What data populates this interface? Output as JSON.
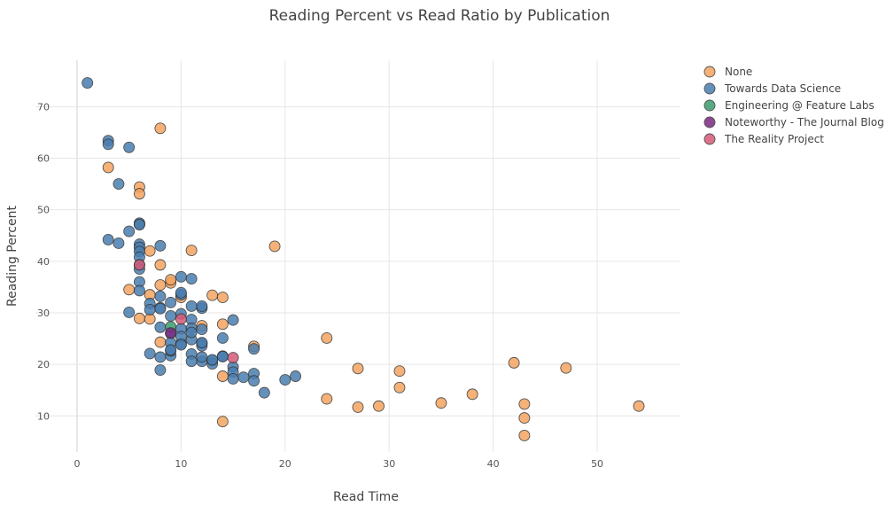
{
  "chart_data": {
    "type": "scatter",
    "title": "Reading Percent vs Read Ratio by Publication",
    "xlabel": "Read Time",
    "ylabel": "Reading Percent",
    "xlim": [
      -4,
      58
    ],
    "ylim": [
      3,
      79
    ],
    "x_ticks": [
      0,
      10,
      20,
      30,
      40,
      50
    ],
    "y_ticks": [
      10,
      20,
      30,
      40,
      50,
      60,
      70
    ],
    "grid": true,
    "legend_position": "top-right",
    "series": [
      {
        "name": "None",
        "color": "#f4a460",
        "x": [
          8,
          3,
          6,
          6,
          6,
          7,
          11,
          19,
          8,
          5,
          8,
          9,
          9,
          13,
          14,
          7,
          10,
          6,
          7,
          12,
          14,
          24,
          17,
          8,
          27,
          31,
          42,
          47,
          14,
          24,
          31,
          38,
          35,
          27,
          29,
          54,
          43,
          43,
          14,
          43
        ],
        "y": [
          65.8,
          58.2,
          54.4,
          53.1,
          47.2,
          42.0,
          42.1,
          42.9,
          39.3,
          34.5,
          35.4,
          35.8,
          36.4,
          33.4,
          33.0,
          33.5,
          33.0,
          28.9,
          28.8,
          27.5,
          27.8,
          25.1,
          23.5,
          24.3,
          19.2,
          18.7,
          20.3,
          19.3,
          17.7,
          13.3,
          15.5,
          14.2,
          12.5,
          11.7,
          11.9,
          11.9,
          12.3,
          9.6,
          8.9,
          6.2
        ]
      },
      {
        "name": "Towards Data Science",
        "color": "#4a7eb0",
        "x": [
          1,
          3,
          3,
          5,
          4,
          6,
          6,
          6,
          6,
          6,
          8,
          3,
          4,
          5,
          6,
          6,
          6,
          6,
          6,
          7,
          8,
          9,
          10,
          10,
          11,
          10,
          11,
          8,
          9,
          10,
          11,
          12,
          12,
          5,
          7,
          8,
          9,
          10,
          11,
          12,
          8,
          9,
          10,
          11,
          12,
          13,
          14,
          15,
          9,
          10,
          11,
          12,
          7,
          8,
          9,
          10,
          11,
          12,
          13,
          14,
          15,
          9,
          11,
          12,
          13,
          15,
          16,
          17,
          17,
          20,
          21,
          15,
          17,
          18,
          8,
          12,
          14
        ],
        "y": [
          74.6,
          63.4,
          62.7,
          62.1,
          55.0,
          47.4,
          47.1,
          43.3,
          42.7,
          41.9,
          43.0,
          44.2,
          43.5,
          45.8,
          40.8,
          39.3,
          38.5,
          36.0,
          34.3,
          31.8,
          33.2,
          32.0,
          33.5,
          37.0,
          36.6,
          33.9,
          31.3,
          31.0,
          29.4,
          29.8,
          28.7,
          30.9,
          31.3,
          30.1,
          30.6,
          30.8,
          26.0,
          26.9,
          27.0,
          26.8,
          27.2,
          24.2,
          24.0,
          24.8,
          24.1,
          20.7,
          25.1,
          28.6,
          21.7,
          25.4,
          22.0,
          23.6,
          22.1,
          21.4,
          22.6,
          23.8,
          20.6,
          20.6,
          20.1,
          21.6,
          19.5,
          22.8,
          26.2,
          24.2,
          20.9,
          18.5,
          17.5,
          18.2,
          23.0,
          17.0,
          17.7,
          17.2,
          16.8,
          14.5,
          18.9,
          21.4,
          21.5
        ]
      },
      {
        "name": "Engineering @ Feature Labs",
        "color": "#3c9c6e",
        "x": [
          9
        ],
        "y": [
          27.3
        ]
      },
      {
        "name": "Noteworthy - The Journal Blog",
        "color": "#7b2a80",
        "x": [
          9
        ],
        "y": [
          26.1
        ]
      },
      {
        "name": "The Reality Project",
        "color": "#d45a78",
        "x": [
          6,
          10,
          15
        ],
        "y": [
          39.3,
          28.8,
          21.3
        ]
      }
    ]
  }
}
